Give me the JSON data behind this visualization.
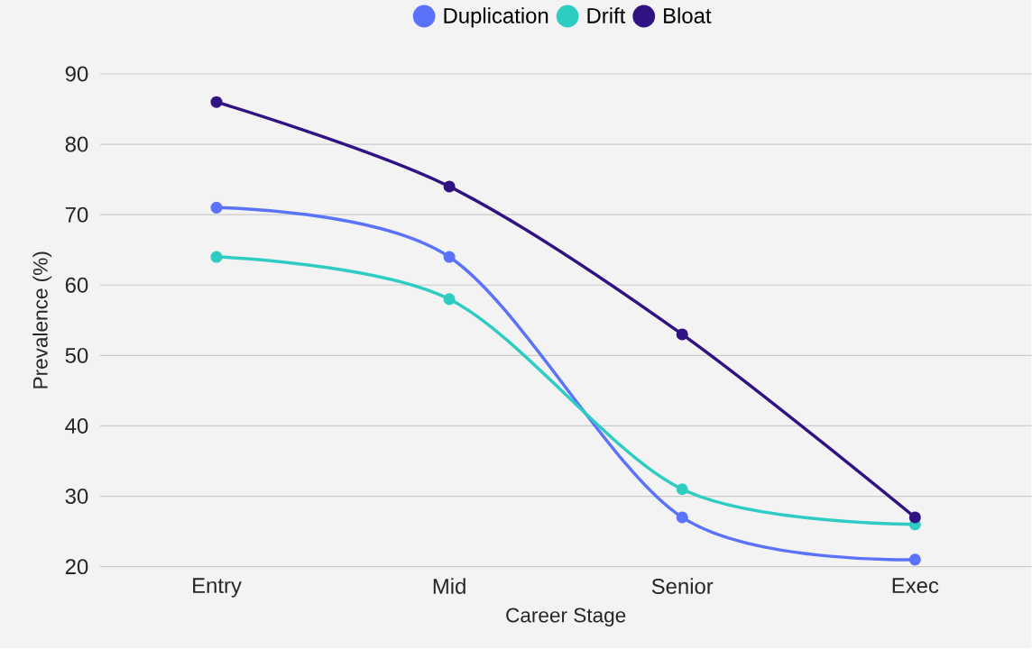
{
  "chart_data": {
    "type": "line",
    "xlabel": "Career Stage",
    "ylabel": "Prevalence (%)",
    "categories": [
      "Entry",
      "Mid",
      "Senior",
      "Exec"
    ],
    "series": [
      {
        "name": "Duplication",
        "color": "#5b72fb",
        "values": [
          71,
          64,
          27,
          21
        ]
      },
      {
        "name": "Drift",
        "color": "#2fccc4",
        "values": [
          64,
          58,
          31,
          26
        ]
      },
      {
        "name": "Bloat",
        "color": "#301282",
        "values": [
          86,
          74,
          53,
          27
        ]
      }
    ],
    "ylim": [
      20,
      90
    ],
    "yticks": [
      20,
      30,
      40,
      50,
      60,
      70,
      80,
      90
    ],
    "grid": "y",
    "legend": "top",
    "marker": "circle",
    "line_style": "solid"
  }
}
